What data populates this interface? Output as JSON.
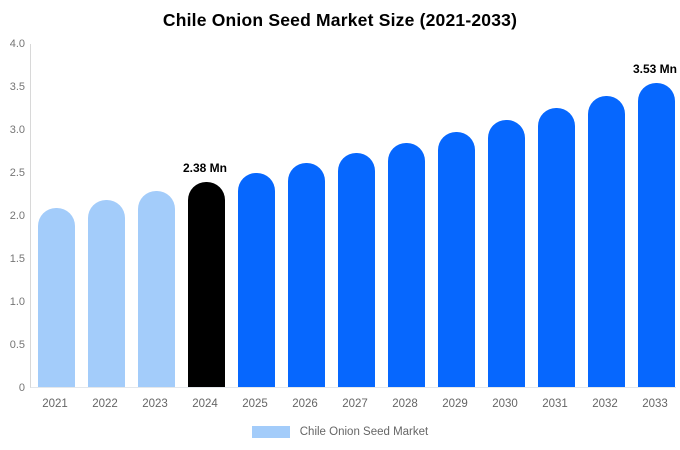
{
  "chart_data": {
    "type": "bar",
    "title": "Chile Onion Seed Market Size (2021-2033)",
    "categories": [
      "2021",
      "2022",
      "2023",
      "2024",
      "2025",
      "2026",
      "2027",
      "2028",
      "2029",
      "2030",
      "2031",
      "2032",
      "2033"
    ],
    "values": [
      2.08,
      2.18,
      2.28,
      2.38,
      2.49,
      2.6,
      2.72,
      2.84,
      2.96,
      3.1,
      3.24,
      3.38,
      3.53
    ],
    "bar_colors": [
      "#A3CCFA",
      "#A3CCFA",
      "#A3CCFA",
      "#000000",
      "#0667FE",
      "#0667FE",
      "#0667FE",
      "#0667FE",
      "#0667FE",
      "#0667FE",
      "#0667FE",
      "#0667FE",
      "#0667FE"
    ],
    "value_labels": [
      {
        "index": 3,
        "text": "2.38 Mn"
      },
      {
        "index": 12,
        "text": "3.53 Mn"
      }
    ],
    "xlabel": "",
    "ylabel": "",
    "ylim": [
      0,
      4
    ],
    "yticks": [
      "0",
      "0.5",
      "1.0",
      "1.5",
      "2.0",
      "2.5",
      "3.0",
      "3.5",
      "4.0"
    ],
    "grid": false,
    "legend": {
      "label": "Chile Onion Seed Market",
      "swatch_color": "#A3CCFA",
      "position": "bottom"
    },
    "colors": {
      "historical_bar": "#A3CCFA",
      "base_year_bar": "#000000",
      "forecast_bar": "#0667FE",
      "axis_text": "#757575",
      "axis_line": "#D8D8D8",
      "title_text": "#000000",
      "value_label_text": "#000000"
    }
  }
}
